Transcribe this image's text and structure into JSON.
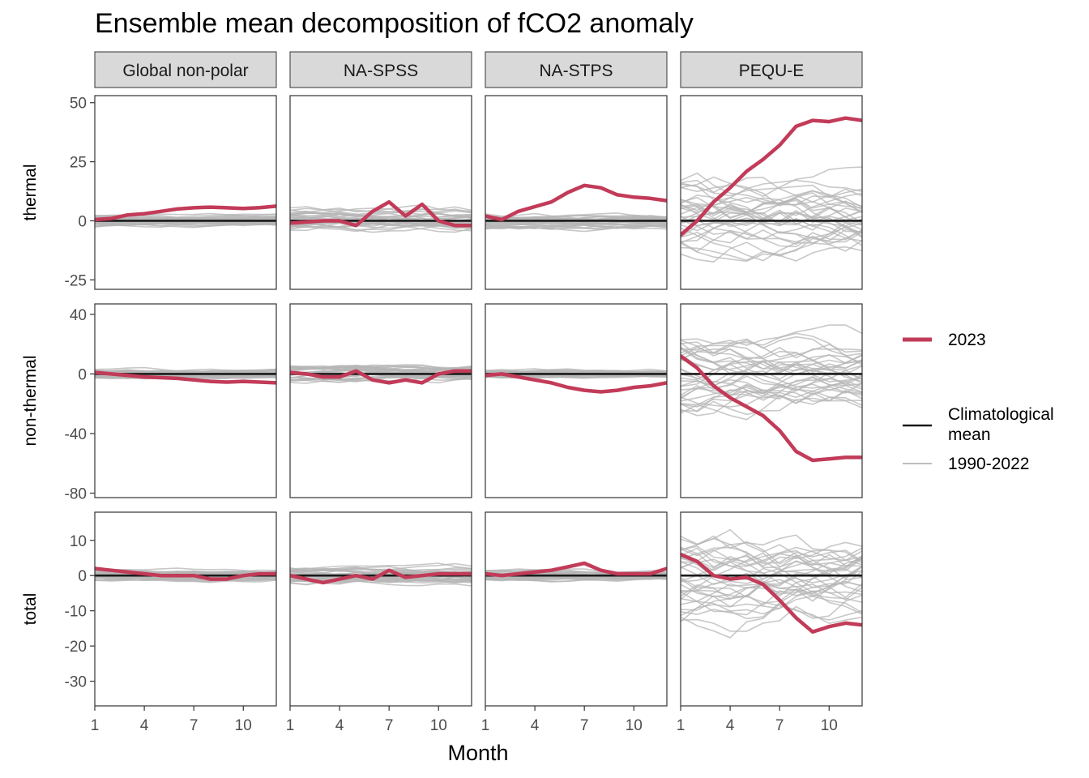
{
  "title": "Ensemble mean decomposition of fCO2 anomaly",
  "chart_data": {
    "type": "line",
    "title": "Ensemble mean decomposition of fCO2 anomaly",
    "xlabel": "Month",
    "columns": [
      "Global non-polar",
      "NA-SPSS",
      "NA-STPS",
      "PEQU-E"
    ],
    "rows": [
      {
        "name": "thermal",
        "ylim": [
          -29,
          53
        ],
        "ticks": [
          -25,
          0,
          25,
          50
        ]
      },
      {
        "name": "non-thermal",
        "ylim": [
          -83,
          47
        ],
        "ticks": [
          -80,
          -40,
          0,
          40
        ]
      },
      {
        "name": "total",
        "ylim": [
          -37,
          18
        ],
        "ticks": [
          -30,
          -20,
          -10,
          0,
          10
        ]
      }
    ],
    "xlim": [
      1,
      12
    ],
    "xticks": [
      1,
      4,
      7,
      10
    ],
    "x": [
      1,
      2,
      3,
      4,
      5,
      6,
      7,
      8,
      9,
      10,
      11,
      12
    ],
    "legend": [
      {
        "label": "2023",
        "color": "#c23b58",
        "kind": "line-2023"
      },
      {
        "label": "Climatological\nmean",
        "color": "#1a1a1a",
        "kind": "line-clim"
      },
      {
        "label": "1990-2022",
        "color": "#bdbdbd",
        "kind": "line-hist"
      }
    ],
    "series_2023": {
      "thermal": {
        "Global non-polar": [
          0.5,
          1,
          2.5,
          3,
          4,
          5,
          5.5,
          5.8,
          5.5,
          5.2,
          5.6,
          6.2
        ],
        "NA-SPSS": [
          -1,
          -0.5,
          0,
          0,
          -2,
          4,
          8,
          2,
          7,
          0,
          -2,
          -2
        ],
        "NA-STPS": [
          2,
          0.5,
          4,
          6,
          8,
          12,
          15,
          14,
          11,
          10,
          9.5,
          8.5
        ],
        "PEQU-E": [
          -6,
          0,
          8,
          14,
          21,
          26,
          32,
          40,
          42.5,
          42,
          43.5,
          42.5
        ]
      },
      "non-thermal": {
        "Global non-polar": [
          1,
          0,
          -1,
          -2,
          -2.5,
          -3,
          -4,
          -5,
          -5.5,
          -5,
          -5.5,
          -6
        ],
        "NA-SPSS": [
          1,
          0,
          -2,
          -2,
          2,
          -4,
          -6,
          -4,
          -6,
          0,
          2,
          2
        ],
        "NA-STPS": [
          -1,
          0,
          -2,
          -4,
          -6,
          -9,
          -11,
          -12,
          -11,
          -9,
          -8,
          -6
        ],
        "PEQU-E": [
          12,
          4,
          -8,
          -16,
          -22,
          -28,
          -38,
          -52,
          -58,
          -57,
          -56,
          -56
        ]
      },
      "total": {
        "Global non-polar": [
          2,
          1.5,
          1,
          0.5,
          0,
          0,
          0,
          -1,
          -1,
          0,
          0.5,
          0.5
        ],
        "NA-SPSS": [
          0,
          -1,
          -2,
          -1,
          0,
          -1,
          1.5,
          -0.5,
          0,
          0.5,
          0.5,
          0.5
        ],
        "NA-STPS": [
          0.5,
          0,
          0.5,
          1,
          1.5,
          2.5,
          3.5,
          1.5,
          0.5,
          0.5,
          0.5,
          2
        ],
        "PEQU-E": [
          6,
          4,
          0,
          -1,
          -0.5,
          -2.5,
          -7,
          -12,
          -16,
          -14.5,
          -13.5,
          -14
        ]
      }
    },
    "climatological_mean": 0,
    "history_years": "1990-2022",
    "history_spread": {
      "thermal": {
        "Global non-polar": 3,
        "NA-SPSS": 6,
        "NA-STPS": 4,
        "PEQU-E": 20
      },
      "non-thermal": {
        "Global non-polar": 4,
        "NA-SPSS": 7,
        "NA-STPS": 4,
        "PEQU-E": 30
      },
      "total": {
        "Global non-polar": 2,
        "NA-SPSS": 3,
        "NA-STPS": 2,
        "PEQU-E": 15
      }
    }
  }
}
